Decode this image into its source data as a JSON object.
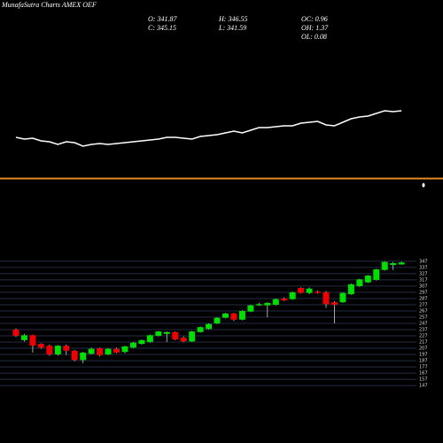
{
  "header": {
    "title": "MunafaSutra Charts AMEX OEF",
    "stats": [
      "O: 341.87",
      "H: 346.55",
      "OC: 0.96",
      "C: 345.15",
      "L: 341.59",
      "OH: 1.37",
      "OL: 0.08"
    ]
  },
  "chart_data": [
    {
      "type": "line",
      "color": "#ffffff",
      "ylim": [
        0,
        100
      ],
      "values": [
        45,
        43,
        44,
        41,
        40,
        37,
        40,
        39,
        35,
        37,
        38,
        37,
        38,
        39,
        40,
        41,
        42,
        43,
        45,
        45,
        44,
        43,
        46,
        47,
        48,
        50,
        52,
        50,
        53,
        56,
        56,
        57,
        58,
        58,
        61,
        62,
        63,
        59,
        58,
        62,
        66,
        68,
        69,
        72,
        75,
        74,
        75
      ]
    },
    {
      "type": "candlestick",
      "up_color": "#00dd00",
      "down_color": "#ee0000",
      "grid": true,
      "ylim": [
        140,
        354
      ],
      "yticks": [
        347,
        337,
        327,
        317,
        307,
        297,
        287,
        277,
        267,
        257,
        247,
        237,
        227,
        217,
        207,
        197,
        187,
        177,
        167,
        157,
        147
      ],
      "open": [
        237,
        220,
        228,
        214,
        211,
        197,
        211,
        203,
        188,
        198,
        207,
        197,
        206,
        201,
        208,
        214,
        217,
        227,
        230,
        233,
        224,
        218,
        233,
        238,
        247,
        256,
        263,
        253,
        266,
        276,
        276,
        277,
        287,
        286,
        304,
        296,
        298,
        297,
        281,
        281,
        294,
        307,
        313,
        317,
        333,
        341,
        341.87
      ],
      "high": [
        239,
        230,
        229,
        215,
        213,
        212,
        213,
        204,
        201,
        208,
        208,
        207,
        208,
        211,
        217,
        221,
        229,
        235,
        234,
        234,
        226,
        235,
        242,
        247,
        257,
        264,
        264,
        268,
        277,
        280,
        281,
        287,
        289,
        298,
        305,
        305,
        300,
        299,
        283,
        297,
        311,
        319,
        325,
        335,
        347,
        346,
        346.55
      ],
      "low": [
        225,
        218,
        200,
        206,
        195,
        195,
        196,
        186,
        183,
        197,
        194,
        196,
        199,
        199,
        207,
        213,
        216,
        226,
        217,
        220,
        217,
        217,
        232,
        237,
        246,
        255,
        251,
        252,
        265,
        275,
        257,
        276,
        283,
        285,
        295,
        294,
        295,
        272,
        247,
        280,
        293,
        306,
        312,
        316,
        332,
        333,
        341.59
      ],
      "close": [
        227,
        228,
        211,
        208,
        197,
        211,
        203,
        188,
        200,
        206,
        196,
        206,
        200,
        210,
        216,
        220,
        228,
        234,
        233,
        221,
        218,
        234,
        241,
        246,
        256,
        263,
        253,
        267,
        276,
        278,
        280,
        286,
        284,
        297,
        296,
        303,
        296,
        278,
        277,
        296,
        310,
        318,
        324,
        334,
        346,
        344,
        345.15
      ]
    }
  ]
}
